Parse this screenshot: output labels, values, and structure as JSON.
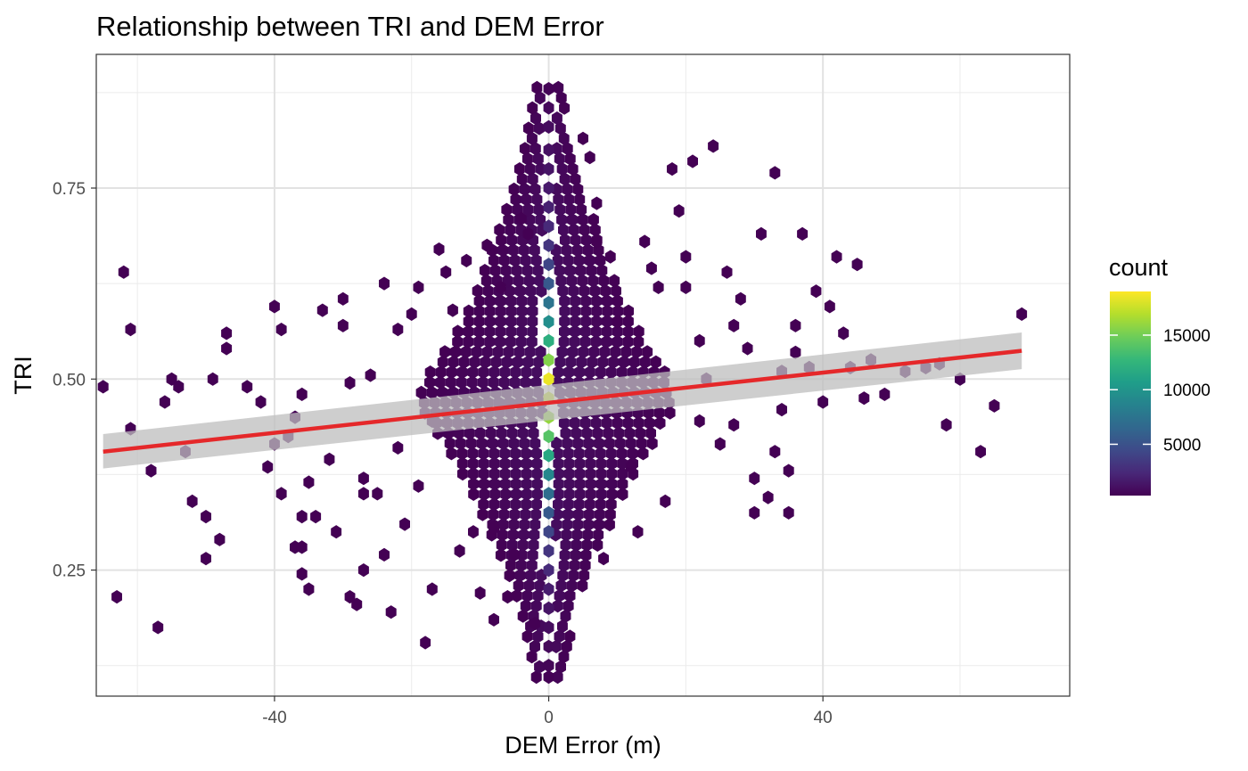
{
  "chart_data": {
    "type": "hexbin",
    "title": "Relationship between TRI and DEM Error",
    "xlabel": "DEM Error (m)",
    "ylabel": "TRI",
    "xlim": [
      -66,
      76
    ],
    "ylim": [
      0.085,
      0.925
    ],
    "x_ticks": [
      -40,
      0,
      40
    ],
    "y_ticks": [
      0.25,
      0.5,
      0.75
    ],
    "x_tick_labels": [
      "-40",
      "0",
      "40"
    ],
    "y_tick_labels": [
      "0.25",
      "0.50",
      "0.75"
    ],
    "grid": true,
    "legend": {
      "title": "count",
      "position": "right",
      "ticks": [
        5000,
        10000,
        15000
      ],
      "tick_labels": [
        "5000",
        "10000",
        "15000"
      ],
      "min": 300,
      "max": 19000,
      "colors": [
        "#440154",
        "#482878",
        "#3E4A89",
        "#31688E",
        "#26828E",
        "#1F9E89",
        "#35B779",
        "#6DCD59",
        "#B4DE2C",
        "#FDE725"
      ]
    },
    "central_column": [
      {
        "y": 0.88,
        "count": 400
      },
      {
        "y": 0.855,
        "count": 700
      },
      {
        "y": 0.83,
        "count": 900
      },
      {
        "y": 0.8,
        "count": 1100
      },
      {
        "y": 0.775,
        "count": 1300
      },
      {
        "y": 0.75,
        "count": 1600
      },
      {
        "y": 0.725,
        "count": 2000
      },
      {
        "y": 0.7,
        "count": 2500
      },
      {
        "y": 0.675,
        "count": 3200
      },
      {
        "y": 0.65,
        "count": 4200
      },
      {
        "y": 0.625,
        "count": 5500
      },
      {
        "y": 0.6,
        "count": 7500
      },
      {
        "y": 0.575,
        "count": 9500
      },
      {
        "y": 0.55,
        "count": 12000
      },
      {
        "y": 0.525,
        "count": 15500
      },
      {
        "y": 0.5,
        "count": 18500
      },
      {
        "y": 0.475,
        "count": 17500
      },
      {
        "y": 0.45,
        "count": 16000
      },
      {
        "y": 0.425,
        "count": 14000
      },
      {
        "y": 0.4,
        "count": 11500
      },
      {
        "y": 0.375,
        "count": 9000
      },
      {
        "y": 0.35,
        "count": 7000
      },
      {
        "y": 0.325,
        "count": 5500
      },
      {
        "y": 0.3,
        "count": 4200
      },
      {
        "y": 0.275,
        "count": 3200
      },
      {
        "y": 0.25,
        "count": 2500
      },
      {
        "y": 0.225,
        "count": 1800
      },
      {
        "y": 0.2,
        "count": 1300
      },
      {
        "y": 0.175,
        "count": 900
      },
      {
        "y": 0.15,
        "count": 700
      },
      {
        "y": 0.125,
        "count": 500
      },
      {
        "y": 0.11,
        "count": 350
      }
    ],
    "scattered_points": [
      [
        -65,
        0.49
      ],
      [
        -63,
        0.215
      ],
      [
        -62,
        0.64
      ],
      [
        -61,
        0.565
      ],
      [
        -61,
        0.435
      ],
      [
        -58,
        0.38
      ],
      [
        -57,
        0.175
      ],
      [
        -56,
        0.47
      ],
      [
        -55,
        0.5
      ],
      [
        -54,
        0.49
      ],
      [
        -53,
        0.405
      ],
      [
        -52,
        0.34
      ],
      [
        -50,
        0.32
      ],
      [
        -50,
        0.265
      ],
      [
        -49,
        0.5
      ],
      [
        -48,
        0.29
      ],
      [
        -47,
        0.56
      ],
      [
        -47,
        0.54
      ],
      [
        -44,
        0.49
      ],
      [
        -42,
        0.47
      ],
      [
        -41,
        0.385
      ],
      [
        -40,
        0.595
      ],
      [
        -40,
        0.415
      ],
      [
        -39,
        0.565
      ],
      [
        -39,
        0.35
      ],
      [
        -38,
        0.425
      ],
      [
        -37,
        0.45
      ],
      [
        -37,
        0.28
      ],
      [
        -36,
        0.32
      ],
      [
        -36,
        0.28
      ],
      [
        -36,
        0.48
      ],
      [
        -36,
        0.245
      ],
      [
        -35,
        0.225
      ],
      [
        -35,
        0.365
      ],
      [
        -34,
        0.32
      ],
      [
        -33,
        0.59
      ],
      [
        -32,
        0.395
      ],
      [
        -31,
        0.3
      ],
      [
        -30,
        0.605
      ],
      [
        -30,
        0.57
      ],
      [
        -29,
        0.495
      ],
      [
        -29,
        0.215
      ],
      [
        -28,
        0.205
      ],
      [
        -27,
        0.37
      ],
      [
        -27,
        0.35
      ],
      [
        -27,
        0.25
      ],
      [
        -26,
        0.505
      ],
      [
        -25,
        0.35
      ],
      [
        -24,
        0.27
      ],
      [
        -24,
        0.625
      ],
      [
        -23,
        0.195
      ],
      [
        -22,
        0.565
      ],
      [
        -22,
        0.41
      ],
      [
        -21,
        0.31
      ],
      [
        -20,
        0.585
      ],
      [
        -19,
        0.62
      ],
      [
        -19,
        0.36
      ],
      [
        -18,
        0.155
      ],
      [
        -17,
        0.225
      ],
      [
        -17,
        0.445
      ],
      [
        -16,
        0.67
      ],
      [
        -15,
        0.64
      ],
      [
        -14,
        0.59
      ],
      [
        -13,
        0.275
      ],
      [
        -12,
        0.655
      ],
      [
        -11,
        0.3
      ],
      [
        -10,
        0.22
      ],
      [
        -9,
        0.675
      ],
      [
        -8,
        0.185
      ],
      [
        -8,
        0.305
      ],
      [
        -7,
        0.62
      ],
      [
        -6,
        0.215
      ],
      [
        -5,
        0.27
      ],
      [
        -4,
        0.71
      ],
      [
        -3,
        0.69
      ],
      [
        -2,
        0.18
      ],
      [
        5,
        0.815
      ],
      [
        6,
        0.79
      ],
      [
        7,
        0.73
      ],
      [
        7,
        0.68
      ],
      [
        8,
        0.265
      ],
      [
        9,
        0.66
      ],
      [
        10,
        0.575
      ],
      [
        12,
        0.385
      ],
      [
        13,
        0.3
      ],
      [
        14,
        0.68
      ],
      [
        15,
        0.645
      ],
      [
        16,
        0.62
      ],
      [
        17,
        0.34
      ],
      [
        18,
        0.775
      ],
      [
        19,
        0.72
      ],
      [
        20,
        0.66
      ],
      [
        20,
        0.62
      ],
      [
        21,
        0.785
      ],
      [
        22,
        0.55
      ],
      [
        22,
        0.445
      ],
      [
        23,
        0.5
      ],
      [
        24,
        0.805
      ],
      [
        25,
        0.415
      ],
      [
        26,
        0.64
      ],
      [
        27,
        0.57
      ],
      [
        27,
        0.44
      ],
      [
        28,
        0.605
      ],
      [
        29,
        0.54
      ],
      [
        30,
        0.37
      ],
      [
        30,
        0.325
      ],
      [
        31,
        0.69
      ],
      [
        32,
        0.345
      ],
      [
        33,
        0.77
      ],
      [
        33,
        0.405
      ],
      [
        34,
        0.51
      ],
      [
        34,
        0.46
      ],
      [
        35,
        0.38
      ],
      [
        35,
        0.325
      ],
      [
        36,
        0.535
      ],
      [
        36,
        0.57
      ],
      [
        37,
        0.69
      ],
      [
        38,
        0.515
      ],
      [
        39,
        0.615
      ],
      [
        40,
        0.47
      ],
      [
        41,
        0.595
      ],
      [
        42,
        0.66
      ],
      [
        43,
        0.56
      ],
      [
        44,
        0.515
      ],
      [
        45,
        0.65
      ],
      [
        46,
        0.475
      ],
      [
        47,
        0.525
      ],
      [
        49,
        0.48
      ],
      [
        52,
        0.51
      ],
      [
        55,
        0.515
      ],
      [
        57,
        0.52
      ],
      [
        58,
        0.44
      ],
      [
        60,
        0.5
      ],
      [
        63,
        0.405
      ],
      [
        65,
        0.465
      ],
      [
        69,
        0.585
      ]
    ],
    "regression": {
      "x_start": -65,
      "x_end": 69,
      "y_start": 0.405,
      "y_end": 0.537,
      "ci_start": [
        0.383,
        0.428
      ],
      "ci_end": [
        0.513,
        0.561
      ],
      "color": "#E5282A",
      "ci_color": "#BEBEBE"
    },
    "background_cloud": {
      "description_free": true,
      "halfwidths": [
        [
          0.89,
          1.5
        ],
        [
          0.85,
          2.5
        ],
        [
          0.8,
          3.5
        ],
        [
          0.75,
          5.0
        ],
        [
          0.7,
          7.0
        ],
        [
          0.65,
          9.0
        ],
        [
          0.6,
          11.0
        ],
        [
          0.55,
          14.0
        ],
        [
          0.5,
          18.0
        ],
        [
          0.47,
          19.0
        ],
        [
          0.44,
          17.0
        ],
        [
          0.4,
          14.0
        ],
        [
          0.35,
          11.0
        ],
        [
          0.3,
          8.5
        ],
        [
          0.25,
          6.0
        ],
        [
          0.2,
          4.0
        ],
        [
          0.15,
          2.8
        ],
        [
          0.11,
          1.8
        ]
      ],
      "color": "#440154"
    }
  }
}
